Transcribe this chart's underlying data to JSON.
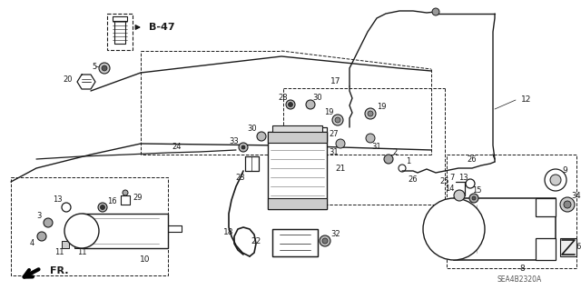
{
  "bg_color": "#ffffff",
  "line_color": "#1a1a1a",
  "part_number_label": "SEA4B2320A",
  "b47_label": "B-47",
  "fr_label": "FR.",
  "fig_width": 6.4,
  "fig_height": 3.19,
  "dpi": 100
}
